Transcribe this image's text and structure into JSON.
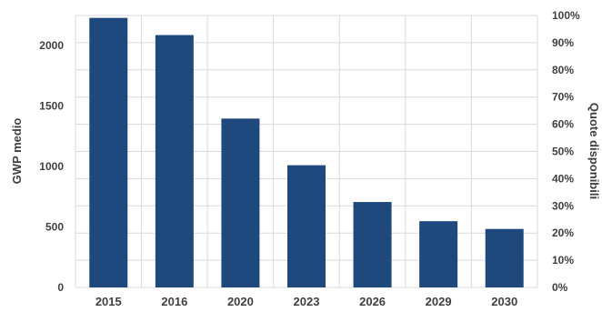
{
  "chart_data": {
    "type": "bar",
    "categories": [
      "2015",
      "2016",
      "2020",
      "2023",
      "2026",
      "2029",
      "2030"
    ],
    "series": [
      {
        "values": [
          2230,
          2088,
          1397,
          1011,
          707,
          548,
          484
        ]
      }
    ],
    "ylabel": "GWP medio",
    "y2label": "Quote disponibili",
    "ylim": [
      0,
      2250
    ],
    "y2lim": [
      0,
      100
    ],
    "yticks": [
      "0",
      "500",
      "1000",
      "1500",
      "2000"
    ],
    "y2ticks": [
      "0%",
      "10%",
      "20%",
      "30%",
      "40%",
      "50%",
      "60%",
      "70%",
      "80%",
      "90%",
      "100%"
    ],
    "grid": true,
    "bar_color": "#1f497d",
    "grid_color": "#d9d9d9"
  }
}
